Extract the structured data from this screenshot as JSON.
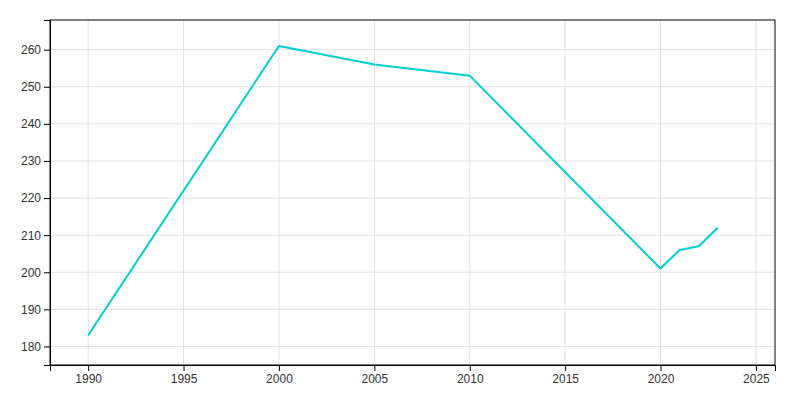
{
  "chart_data": {
    "type": "line",
    "x": [
      1990,
      2000,
      2005,
      2010,
      2020,
      2021,
      2022,
      2023
    ],
    "values": [
      183,
      261,
      256,
      253,
      201,
      206,
      207,
      212
    ],
    "color": "#00CED1",
    "xlim": [
      1988,
      2026
    ],
    "ylim": [
      175,
      268
    ],
    "xticks": [
      1990,
      1995,
      2000,
      2005,
      2010,
      2015,
      2020,
      2025
    ],
    "yticks": [
      180,
      190,
      200,
      210,
      220,
      230,
      240,
      250,
      260
    ],
    "grid": true
  }
}
